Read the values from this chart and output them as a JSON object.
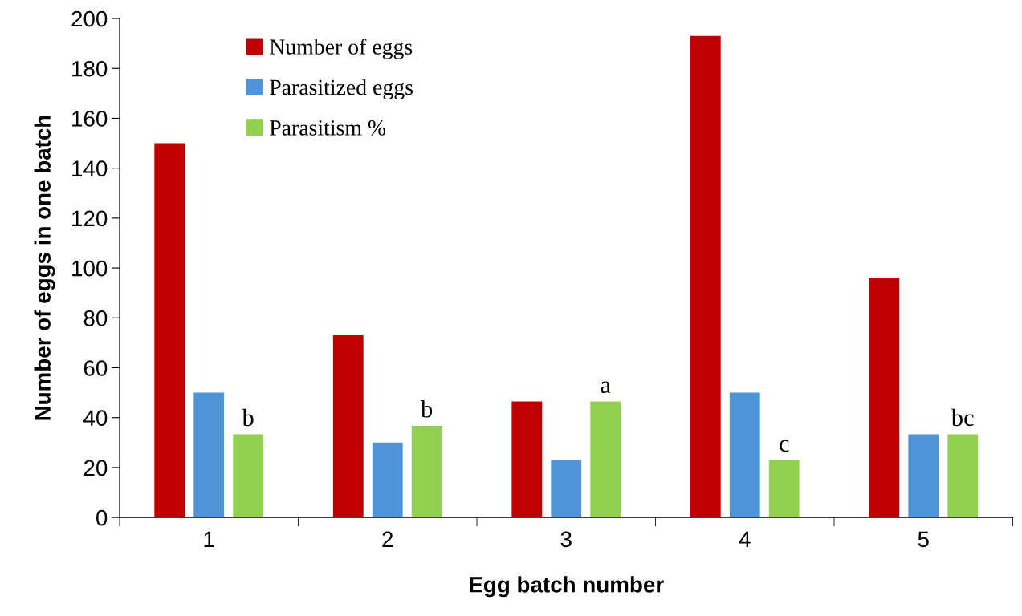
{
  "chart_data": {
    "type": "bar",
    "xlabel": "Egg batch number",
    "ylabel": "Number of eggs in one batch",
    "categories": [
      "1",
      "2",
      "3",
      "4",
      "5"
    ],
    "series": [
      {
        "name": "Number of eggs",
        "color": "#c00000",
        "values": [
          150,
          73,
          46.5,
          193,
          96
        ]
      },
      {
        "name": "Parasitized eggs",
        "color": "#4f94d8",
        "values": [
          50,
          30,
          23,
          50,
          33.3
        ]
      },
      {
        "name": "Parasitism %",
        "color": "#92d050",
        "values": [
          33.3,
          36.7,
          46.5,
          23,
          33.3
        ]
      }
    ],
    "ylim": [
      0,
      200
    ],
    "yticks": [
      0,
      20,
      40,
      60,
      80,
      100,
      120,
      140,
      160,
      180,
      200
    ],
    "grid": false,
    "legend": "top left",
    "annotations": [
      "b",
      "b",
      "a",
      "c",
      "bc"
    ]
  }
}
